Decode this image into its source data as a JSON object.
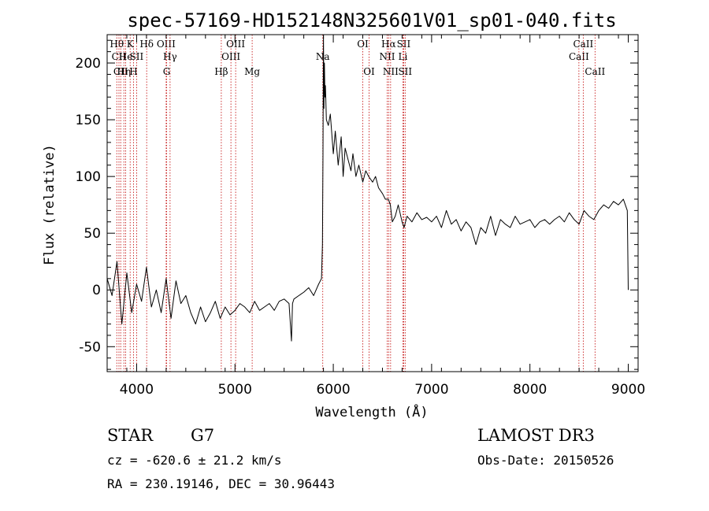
{
  "chart_data": {
    "type": "line",
    "title": "spec-57169-HD152148N325601V01_sp01-040.fits",
    "xlabel": "Wavelength (Å)",
    "ylabel": "Flux (relative)",
    "xlim": [
      3700,
      9100
    ],
    "ylim": [
      -72,
      225
    ],
    "xticks": [
      4000,
      5000,
      6000,
      7000,
      8000,
      9000
    ],
    "yticks": [
      -50,
      0,
      50,
      100,
      150,
      200
    ],
    "grid": false,
    "series": [
      {
        "name": "flux",
        "x": [
          3700,
          3750,
          3800,
          3850,
          3900,
          3950,
          4000,
          4050,
          4100,
          4150,
          4200,
          4250,
          4300,
          4350,
          4400,
          4450,
          4500,
          4550,
          4600,
          4650,
          4700,
          4750,
          4800,
          4850,
          4900,
          4950,
          5000,
          5050,
          5100,
          5150,
          5200,
          5250,
          5300,
          5350,
          5400,
          5450,
          5500,
          5550,
          5575,
          5585,
          5600,
          5650,
          5700,
          5750,
          5800,
          5850,
          5880,
          5890,
          5895,
          5900,
          5905,
          5910,
          5915,
          5920,
          5930,
          5950,
          5970,
          6000,
          6020,
          6050,
          6080,
          6100,
          6120,
          6150,
          6180,
          6200,
          6230,
          6260,
          6300,
          6330,
          6360,
          6400,
          6430,
          6460,
          6500,
          6530,
          6560,
          6580,
          6600,
          6630,
          6660,
          6700,
          6720,
          6750,
          6800,
          6850,
          6900,
          6950,
          7000,
          7050,
          7100,
          7150,
          7200,
          7250,
          7300,
          7350,
          7400,
          7450,
          7500,
          7550,
          7600,
          7650,
          7700,
          7750,
          7800,
          7850,
          7900,
          7950,
          8000,
          8050,
          8100,
          8150,
          8200,
          8250,
          8300,
          8350,
          8400,
          8450,
          8500,
          8550,
          8600,
          8650,
          8700,
          8750,
          8800,
          8850,
          8900,
          8950,
          8990,
          9000
        ],
        "values": [
          10,
          -5,
          25,
          -30,
          15,
          -20,
          5,
          -10,
          20,
          -15,
          0,
          -20,
          10,
          -25,
          8,
          -12,
          -5,
          -20,
          -30,
          -15,
          -28,
          -20,
          -10,
          -25,
          -15,
          -22,
          -18,
          -12,
          -15,
          -20,
          -10,
          -18,
          -15,
          -12,
          -18,
          -10,
          -8,
          -12,
          -45,
          -12,
          -8,
          -5,
          -2,
          2,
          -5,
          5,
          10,
          40,
          120,
          225,
          160,
          200,
          170,
          180,
          150,
          145,
          155,
          120,
          140,
          110,
          135,
          100,
          125,
          115,
          105,
          120,
          100,
          110,
          95,
          105,
          100,
          95,
          100,
          90,
          85,
          80,
          80,
          75,
          60,
          65,
          75,
          60,
          55,
          65,
          60,
          68,
          62,
          64,
          60,
          65,
          55,
          70,
          58,
          62,
          52,
          60,
          55,
          40,
          55,
          50,
          65,
          48,
          62,
          58,
          55,
          65,
          58,
          60,
          62,
          55,
          60,
          62,
          58,
          62,
          65,
          60,
          68,
          62,
          58,
          70,
          65,
          62,
          70,
          75,
          72,
          78,
          75,
          80,
          70,
          0
        ]
      }
    ],
    "lines": [
      {
        "label": "Hθ",
        "x": 3798,
        "row": 1
      },
      {
        "label": "CII",
        "x": 3820,
        "row": 2
      },
      {
        "label": "CII",
        "x": 3838,
        "row": 3
      },
      {
        "label": "Hη",
        "x": 3870,
        "row": 3
      },
      {
        "label": "He",
        "x": 3889,
        "row": 2
      },
      {
        "label": "K",
        "x": 3934,
        "row": 1
      },
      {
        "label": "H",
        "x": 3968,
        "row": 3
      },
      {
        "label": "SII",
        "x": 4000,
        "row": 2
      },
      {
        "label": "Hδ",
        "x": 4102,
        "row": 1
      },
      {
        "label": "OIII",
        "x": 4300,
        "row": 1
      },
      {
        "label": "G",
        "x": 4305,
        "row": 3
      },
      {
        "label": "Hγ",
        "x": 4340,
        "row": 2
      },
      {
        "label": "Hβ",
        "x": 4861,
        "row": 3
      },
      {
        "label": "OIII",
        "x": 4959,
        "row": 2
      },
      {
        "label": "OIII",
        "x": 5007,
        "row": 1
      },
      {
        "label": "Mg",
        "x": 5175,
        "row": 3
      },
      {
        "label": "Na",
        "x": 5893,
        "row": 2
      },
      {
        "label": "OI",
        "x": 6300,
        "row": 1
      },
      {
        "label": "OI",
        "x": 6364,
        "row": 3
      },
      {
        "label": "NII",
        "x": 6548,
        "row": 2
      },
      {
        "label": "Hα",
        "x": 6563,
        "row": 1
      },
      {
        "label": "NII",
        "x": 6583,
        "row": 3
      },
      {
        "label": "Li",
        "x": 6708,
        "row": 2
      },
      {
        "label": "SII",
        "x": 6716,
        "row": 1
      },
      {
        "label": "SII",
        "x": 6731,
        "row": 3
      },
      {
        "label": "CaII",
        "x": 8498,
        "row": 2
      },
      {
        "label": "CaII",
        "x": 8542,
        "row": 1
      },
      {
        "label": "CaII",
        "x": 8662,
        "row": 3
      }
    ]
  },
  "info": {
    "object_class": "STAR",
    "subclass": "G7",
    "survey": "LAMOST DR3",
    "cz": "cz = -620.6 ± 21.2 km/s",
    "obs_date": "Obs-Date: 20150526",
    "coords": "RA = 230.19146, DEC =  30.96443"
  }
}
